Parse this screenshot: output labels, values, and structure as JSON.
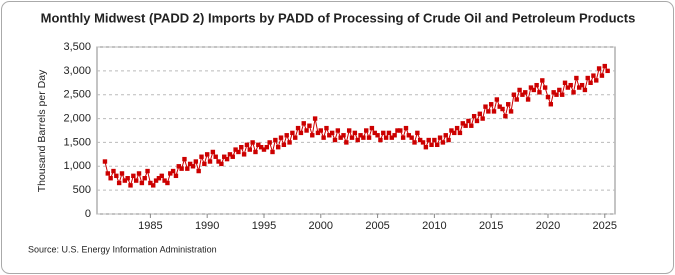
{
  "chart_data": {
    "type": "line",
    "title": "Monthly Midwest (PADD 2) Imports by PADD of Processing of Crude Oil and Petroleum Products",
    "y_label": "Thousand Barrels per Day",
    "source": "Source: U.S. Energy Information Administration",
    "xlim": [
      1980.3,
      2025.9
    ],
    "xticks": [
      1985,
      1990,
      1995,
      2000,
      2005,
      2010,
      2015,
      2020,
      2025
    ],
    "ylim": [
      0,
      3500
    ],
    "yticks": [
      0,
      500,
      {
        "value": 1000,
        "label": "1,000"
      },
      {
        "value": 1500,
        "label": "1,500"
      },
      {
        "value": 2000,
        "label": "2,000"
      },
      {
        "value": 2500,
        "label": "2,500"
      },
      {
        "value": 3000,
        "label": "3,000"
      },
      {
        "value": 3500,
        "label": "3,500"
      }
    ],
    "grid": true,
    "x": [
      1981,
      1981.25,
      1981.5,
      1981.75,
      1982,
      1982.25,
      1982.5,
      1982.75,
      1983,
      1983.25,
      1983.5,
      1983.75,
      1984,
      1984.25,
      1984.5,
      1984.75,
      1985,
      1985.25,
      1985.5,
      1985.75,
      1986,
      1986.25,
      1986.5,
      1986.75,
      1987,
      1987.25,
      1987.5,
      1987.75,
      1988,
      1988.25,
      1988.5,
      1988.75,
      1989,
      1989.25,
      1989.5,
      1989.75,
      1990,
      1990.25,
      1990.5,
      1990.75,
      1991,
      1991.25,
      1991.5,
      1991.75,
      1992,
      1992.25,
      1992.5,
      1992.75,
      1993,
      1993.25,
      1993.5,
      1993.75,
      1994,
      1994.25,
      1994.5,
      1994.75,
      1995,
      1995.25,
      1995.5,
      1995.75,
      1996,
      1996.25,
      1996.5,
      1996.75,
      1997,
      1997.25,
      1997.5,
      1997.75,
      1998,
      1998.25,
      1998.5,
      1998.75,
      1999,
      1999.25,
      1999.5,
      1999.75,
      2000,
      2000.25,
      2000.5,
      2000.75,
      2001,
      2001.25,
      2001.5,
      2001.75,
      2002,
      2002.25,
      2002.5,
      2002.75,
      2003,
      2003.25,
      2003.5,
      2003.75,
      2004,
      2004.25,
      2004.5,
      2004.75,
      2005,
      2005.25,
      2005.5,
      2005.75,
      2006,
      2006.25,
      2006.5,
      2006.75,
      2007,
      2007.25,
      2007.5,
      2007.75,
      2008,
      2008.25,
      2008.5,
      2008.75,
      2009,
      2009.25,
      2009.5,
      2009.75,
      2010,
      2010.25,
      2010.5,
      2010.75,
      2011,
      2011.25,
      2011.5,
      2011.75,
      2012,
      2012.25,
      2012.5,
      2012.75,
      2013,
      2013.25,
      2013.5,
      2013.75,
      2014,
      2014.25,
      2014.5,
      2014.75,
      2015,
      2015.25,
      2015.5,
      2015.75,
      2016,
      2016.25,
      2016.5,
      2016.75,
      2017,
      2017.25,
      2017.5,
      2017.75,
      2018,
      2018.25,
      2018.5,
      2018.75,
      2019,
      2019.25,
      2019.5,
      2019.75,
      2020,
      2020.25,
      2020.5,
      2020.75,
      2021,
      2021.25,
      2021.5,
      2021.75,
      2022,
      2022.25,
      2022.5,
      2022.75,
      2023,
      2023.25,
      2023.5,
      2023.75,
      2024,
      2024.25,
      2024.5,
      2024.75,
      2025,
      2025.25
    ],
    "series": [
      {
        "color": "#cc0000",
        "values": [
          1100,
          850,
          750,
          900,
          800,
          650,
          850,
          700,
          750,
          600,
          800,
          700,
          850,
          650,
          750,
          900,
          650,
          600,
          700,
          750,
          800,
          700,
          650,
          850,
          900,
          800,
          1000,
          950,
          1150,
          950,
          1050,
          1000,
          1100,
          900,
          1200,
          1050,
          1250,
          1100,
          1300,
          1200,
          1100,
          1050,
          1200,
          1150,
          1250,
          1200,
          1350,
          1300,
          1400,
          1250,
          1450,
          1350,
          1500,
          1300,
          1450,
          1400,
          1350,
          1400,
          1500,
          1300,
          1550,
          1400,
          1600,
          1450,
          1650,
          1500,
          1700,
          1600,
          1800,
          1700,
          1900,
          1750,
          1850,
          1650,
          2000,
          1700,
          1750,
          1600,
          1800,
          1650,
          1700,
          1550,
          1750,
          1600,
          1650,
          1500,
          1750,
          1600,
          1700,
          1550,
          1650,
          1600,
          1750,
          1600,
          1800,
          1700,
          1650,
          1550,
          1700,
          1600,
          1700,
          1600,
          1650,
          1750,
          1750,
          1600,
          1800,
          1650,
          1600,
          1500,
          1700,
          1550,
          1500,
          1400,
          1550,
          1450,
          1550,
          1450,
          1600,
          1500,
          1650,
          1550,
          1750,
          1700,
          1800,
          1700,
          1900,
          1850,
          1950,
          1850,
          2050,
          1950,
          2100,
          2000,
          2250,
          2150,
          2300,
          2150,
          2400,
          2250,
          2200,
          2050,
          2300,
          2150,
          2500,
          2400,
          2600,
          2500,
          2550,
          2400,
          2650,
          2600,
          2700,
          2550,
          2800,
          2650,
          2450,
          2300,
          2550,
          2500,
          2600,
          2500,
          2750,
          2650,
          2700,
          2550,
          2850,
          2650,
          2700,
          2600,
          2850,
          2750,
          2900,
          2800,
          3050,
          2900,
          3100,
          3000
        ]
      }
    ]
  }
}
